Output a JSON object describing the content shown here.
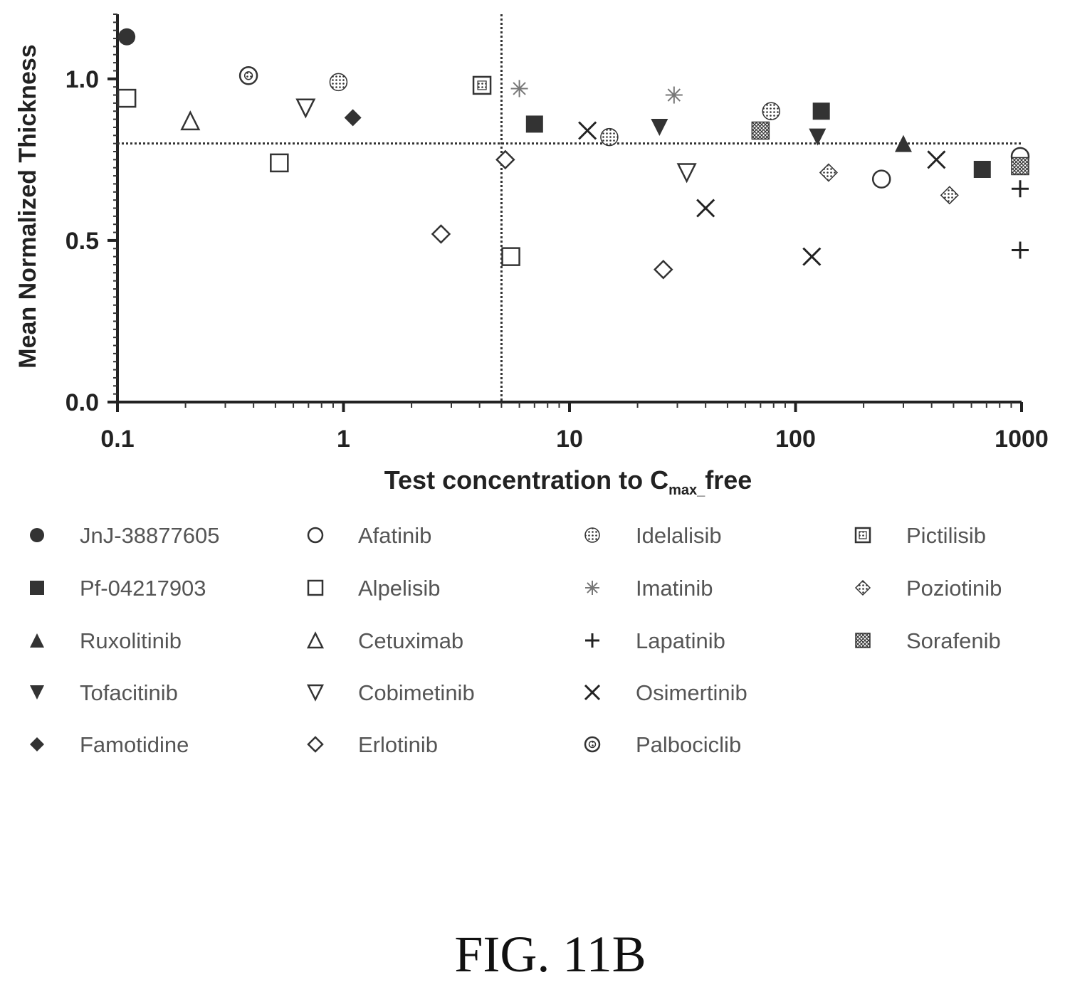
{
  "figure": {
    "caption": "FIG. 11B"
  },
  "chart_data": {
    "type": "scatter",
    "xlabel": "Test concentration to C",
    "xlabel_sub": "max_",
    "xlabel_tail": "free",
    "ylabel": "Mean Normalized Thickness",
    "x_scale": "log",
    "xlim": [
      0.1,
      1000
    ],
    "ylim": [
      0,
      1.2
    ],
    "x_ticks": [
      0.1,
      1,
      10,
      100,
      1000
    ],
    "x_tick_labels": [
      "0.1",
      "1",
      "10",
      "100",
      "1000"
    ],
    "y_ticks": [
      0,
      0.5,
      1.0
    ],
    "y_tick_labels": [
      "0.0",
      "0.5",
      "1.0"
    ],
    "reference_lines": {
      "x": 5,
      "y": 0.8
    },
    "grid": false,
    "legend_position": "bottom",
    "series": [
      {
        "name": "JnJ-38877605",
        "marker": "filled-circle",
        "points": [
          [
            0.11,
            1.13
          ]
        ]
      },
      {
        "name": "Pf-04217903",
        "marker": "filled-square",
        "points": [
          [
            7,
            0.86
          ],
          [
            130,
            0.9
          ],
          [
            670,
            0.72
          ]
        ]
      },
      {
        "name": "Ruxolitinib",
        "marker": "filled-triangle",
        "points": [
          [
            300,
            0.8
          ]
        ]
      },
      {
        "name": "Tofacitinib",
        "marker": "filled-triangle-down",
        "points": [
          [
            25,
            0.85
          ],
          [
            125,
            0.82
          ]
        ]
      },
      {
        "name": "Famotidine",
        "marker": "filled-diamond",
        "points": [
          [
            1.1,
            0.88
          ]
        ]
      },
      {
        "name": "Afatinib",
        "marker": "open-circle",
        "points": [
          [
            240,
            0.69
          ],
          [
            1000,
            0.76
          ]
        ]
      },
      {
        "name": "Alpelisib",
        "marker": "open-square",
        "points": [
          [
            0.11,
            0.94
          ],
          [
            0.52,
            0.74
          ],
          [
            5.5,
            0.45
          ]
        ]
      },
      {
        "name": "Cetuximab",
        "marker": "open-triangle",
        "points": [
          [
            0.21,
            0.87
          ]
        ]
      },
      {
        "name": "Cobimetinib",
        "marker": "open-triangle-down",
        "points": [
          [
            0.68,
            0.91
          ],
          [
            33,
            0.71
          ]
        ]
      },
      {
        "name": "Erlotinib",
        "marker": "open-diamond",
        "points": [
          [
            2.7,
            0.52
          ],
          [
            5.2,
            0.75
          ],
          [
            26,
            0.41
          ]
        ]
      },
      {
        "name": "Idelalisib",
        "marker": "dotted-circle",
        "points": [
          [
            0.95,
            0.99
          ],
          [
            15,
            0.82
          ],
          [
            78,
            0.9
          ]
        ]
      },
      {
        "name": "Imatinib",
        "marker": "star",
        "points": [
          [
            6,
            0.97
          ],
          [
            29,
            0.95
          ]
        ]
      },
      {
        "name": "Lapatinib",
        "marker": "plus",
        "points": [
          [
            1000,
            0.47
          ],
          [
            1000,
            0.66
          ]
        ]
      },
      {
        "name": "Osimertinib",
        "marker": "cross",
        "points": [
          [
            12,
            0.84
          ],
          [
            40,
            0.6
          ],
          [
            118,
            0.45
          ],
          [
            420,
            0.75
          ]
        ]
      },
      {
        "name": "Palbociclib",
        "marker": "target-circle",
        "points": [
          [
            0.38,
            1.01
          ]
        ]
      },
      {
        "name": "Pictilisib",
        "marker": "target-square",
        "points": [
          [
            4.1,
            0.98
          ]
        ]
      },
      {
        "name": "Poziotinib",
        "marker": "dotted-diamond",
        "points": [
          [
            140,
            0.71
          ],
          [
            480,
            0.64
          ]
        ]
      },
      {
        "name": "Sorafenib",
        "marker": "hatched-square",
        "points": [
          [
            70,
            0.84
          ],
          [
            1000,
            0.73
          ]
        ]
      }
    ]
  }
}
